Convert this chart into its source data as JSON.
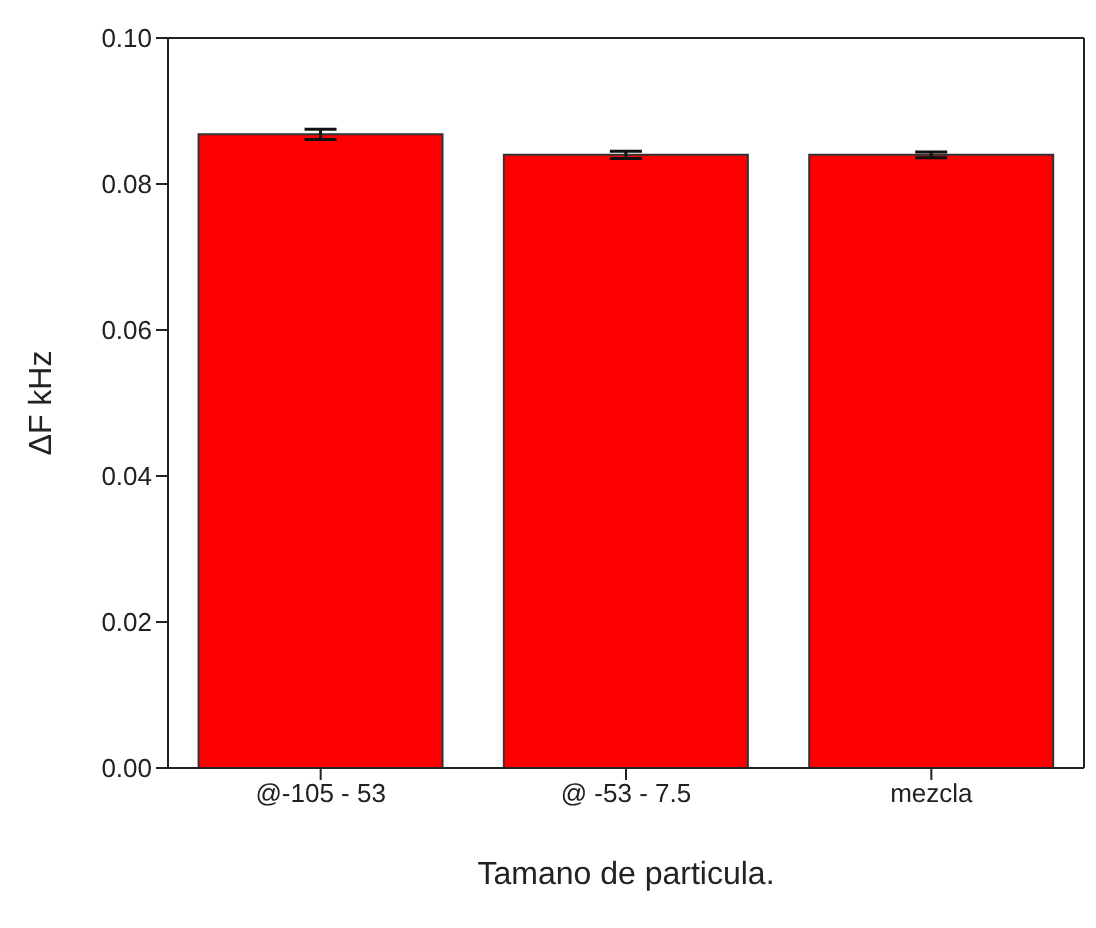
{
  "chart_data": {
    "type": "bar",
    "xlabel": "Tamano de particula.",
    "ylabel": "ΔF kHz",
    "categories": [
      "@-105 - 53",
      "@ -53 - 7.5",
      "mezcla"
    ],
    "values": [
      0.0868,
      0.084,
      0.084
    ],
    "errors": [
      0.0007,
      0.0005,
      0.0004
    ],
    "color": "#ff0000",
    "ylim": [
      0,
      0.1
    ],
    "yticks": [
      {
        "value": 0,
        "label": "0.00"
      },
      {
        "value": 0.02,
        "label": "0.02"
      },
      {
        "value": 0.04,
        "label": "0.04"
      },
      {
        "value": 0.06,
        "label": "0.06"
      },
      {
        "value": 0.08,
        "label": "0.08"
      },
      {
        "value": 0.1,
        "label": "0.10"
      }
    ],
    "grid": false,
    "legend": false
  }
}
